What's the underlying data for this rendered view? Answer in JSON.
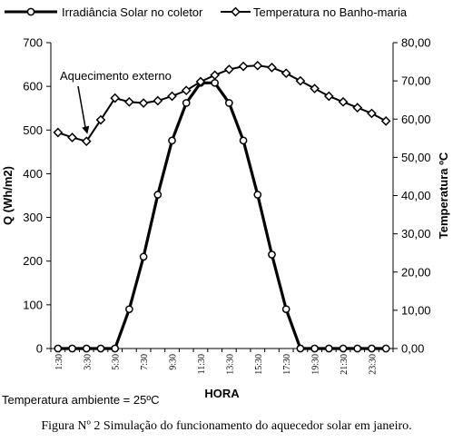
{
  "chart_data": {
    "type": "line",
    "title": "",
    "xlabel": "HORA",
    "ylabel_left": "Q (Wh/m2)",
    "ylabel_right": "Temperatura ºC",
    "y_left_range": [
      0,
      700
    ],
    "y_left_ticks": [
      "0",
      "100",
      "200",
      "300",
      "400",
      "500",
      "600",
      "700"
    ],
    "y_right_range": [
      0,
      80
    ],
    "y_right_ticks": [
      "0,00",
      "10,00",
      "20,00",
      "30,00",
      "40,00",
      "50,00",
      "60,00",
      "70,00",
      "80,00"
    ],
    "x_tick_labels": [
      "1:30",
      "3:30",
      "5:30",
      "7:30",
      "9:30",
      "11:30",
      "13:30",
      "15:30",
      "17:30",
      "19:30",
      "21:30",
      "23:30"
    ],
    "x_points": 24,
    "grid": false,
    "legend_position": "top",
    "series": [
      {
        "name": "Irradiância Solar no coletor",
        "axis": "left",
        "marker": "circle",
        "color": "#000000",
        "values": [
          0,
          0,
          0,
          0,
          0,
          90,
          210,
          352,
          476,
          562,
          608,
          608,
          562,
          476,
          352,
          215,
          90,
          0,
          0,
          0,
          0,
          0,
          0,
          0
        ]
      },
      {
        "name": "Temperatura no Banho-maria",
        "axis": "right",
        "marker": "diamond",
        "color": "#000000",
        "values": [
          56.5,
          55.2,
          54.2,
          59.8,
          65.5,
          64.5,
          64.2,
          64.8,
          66.0,
          67.5,
          69.8,
          71.5,
          73.0,
          73.8,
          74.0,
          73.5,
          72.0,
          70.0,
          68.0,
          66.0,
          64.5,
          63.0,
          61.5,
          59.5
        ]
      }
    ],
    "annotation": {
      "text": "Aquecimento externo",
      "points_to_index": 2
    }
  },
  "notes": {
    "ambient": "Temperatura ambiente = 25ºC"
  },
  "caption": "Figura Nº 2 Simulação do funcionamento do aquecedor solar em janeiro."
}
